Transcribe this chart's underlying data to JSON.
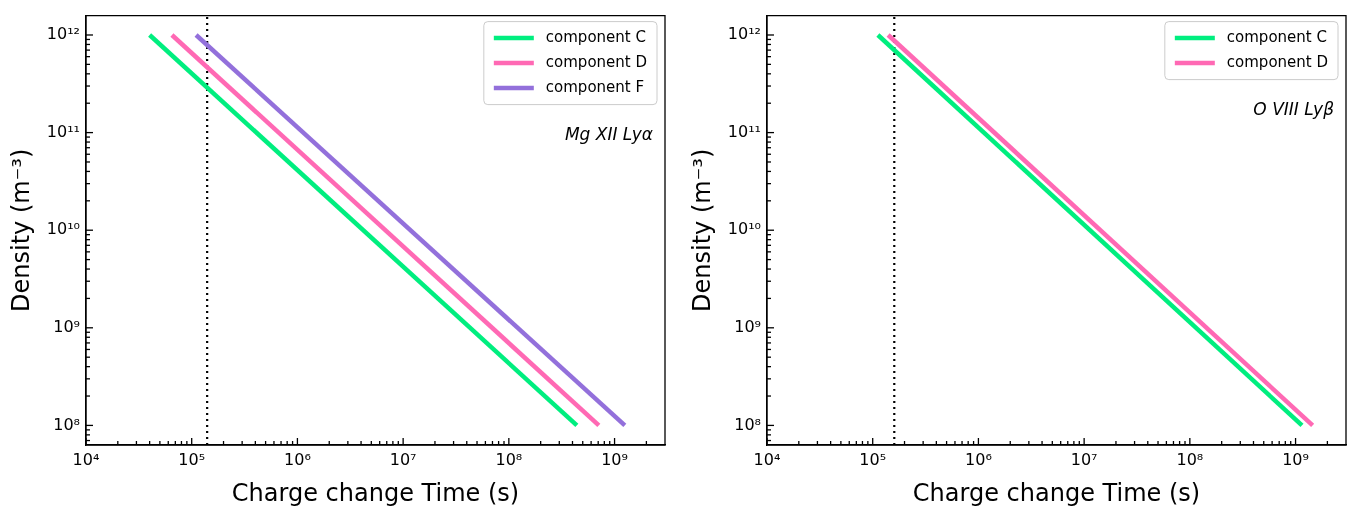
{
  "chart_data": [
    {
      "type": "line",
      "log": "xy",
      "xlabel": "Charge change Time (s)",
      "ylabel": "Density (m⁻³)",
      "legend": "top right",
      "marker": "none",
      "line_style": "solid",
      "grid": false,
      "annotations": [
        "Mg XII Lyα"
      ],
      "xlim": [
        10000,
        3000000000
      ],
      "ylim": [
        63000000,
        1580000000000
      ],
      "xticks": [
        {
          "value": 10000,
          "label": "10⁴"
        },
        {
          "value": 20000,
          "label": null
        },
        {
          "value": 30000,
          "label": null
        },
        {
          "value": 40000,
          "label": null
        },
        {
          "value": 50000,
          "label": null
        },
        {
          "value": 60000,
          "label": null
        },
        {
          "value": 70000,
          "label": null
        },
        {
          "value": 80000,
          "label": null
        },
        {
          "value": 90000,
          "label": null
        },
        {
          "value": 100000,
          "label": "10⁵"
        },
        {
          "value": 200000,
          "label": null
        },
        {
          "value": 300000,
          "label": null
        },
        {
          "value": 400000,
          "label": null
        },
        {
          "value": 500000,
          "label": null
        },
        {
          "value": 600000,
          "label": null
        },
        {
          "value": 700000,
          "label": null
        },
        {
          "value": 800000,
          "label": null
        },
        {
          "value": 900000,
          "label": null
        },
        {
          "value": 1000000,
          "label": "10⁶"
        },
        {
          "value": 2000000,
          "label": null
        },
        {
          "value": 3000000,
          "label": null
        },
        {
          "value": 4000000,
          "label": null
        },
        {
          "value": 5000000,
          "label": null
        },
        {
          "value": 6000000,
          "label": null
        },
        {
          "value": 7000000,
          "label": null
        },
        {
          "value": 8000000,
          "label": null
        },
        {
          "value": 9000000,
          "label": null
        },
        {
          "value": 10000000,
          "label": "10⁷"
        },
        {
          "value": 20000000,
          "label": null
        },
        {
          "value": 30000000,
          "label": null
        },
        {
          "value": 40000000,
          "label": null
        },
        {
          "value": 50000000,
          "label": null
        },
        {
          "value": 60000000,
          "label": null
        },
        {
          "value": 70000000,
          "label": null
        },
        {
          "value": 80000000,
          "label": null
        },
        {
          "value": 90000000,
          "label": null
        },
        {
          "value": 100000000,
          "label": "10⁸"
        },
        {
          "value": 200000000,
          "label": null
        },
        {
          "value": 300000000,
          "label": null
        },
        {
          "value": 400000000,
          "label": null
        },
        {
          "value": 500000000,
          "label": null
        },
        {
          "value": 600000000,
          "label": null
        },
        {
          "value": 700000000,
          "label": null
        },
        {
          "value": 800000000,
          "label": null
        },
        {
          "value": 900000000,
          "label": null
        },
        {
          "value": 1000000000,
          "label": "10⁹"
        },
        {
          "value": 2000000000,
          "label": null
        }
      ],
      "yticks": [
        {
          "value": 70000000,
          "label": null
        },
        {
          "value": 80000000,
          "label": null
        },
        {
          "value": 90000000,
          "label": null
        },
        {
          "value": 100000000,
          "label": "10⁸"
        },
        {
          "value": 200000000,
          "label": null
        },
        {
          "value": 300000000,
          "label": null
        },
        {
          "value": 400000000,
          "label": null
        },
        {
          "value": 500000000,
          "label": null
        },
        {
          "value": 600000000,
          "label": null
        },
        {
          "value": 700000000,
          "label": null
        },
        {
          "value": 800000000,
          "label": null
        },
        {
          "value": 900000000,
          "label": null
        },
        {
          "value": 1000000000,
          "label": "10⁹"
        },
        {
          "value": 2000000000,
          "label": null
        },
        {
          "value": 3000000000,
          "label": null
        },
        {
          "value": 4000000000,
          "label": null
        },
        {
          "value": 5000000000,
          "label": null
        },
        {
          "value": 6000000000,
          "label": null
        },
        {
          "value": 7000000000,
          "label": null
        },
        {
          "value": 8000000000,
          "label": null
        },
        {
          "value": 9000000000,
          "label": null
        },
        {
          "value": 10000000000,
          "label": "10¹⁰"
        },
        {
          "value": 20000000000,
          "label": null
        },
        {
          "value": 30000000000,
          "label": null
        },
        {
          "value": 40000000000,
          "label": null
        },
        {
          "value": 50000000000,
          "label": null
        },
        {
          "value": 60000000000,
          "label": null
        },
        {
          "value": 70000000000,
          "label": null
        },
        {
          "value": 80000000000,
          "label": null
        },
        {
          "value": 90000000000,
          "label": null
        },
        {
          "value": 100000000000,
          "label": "10¹¹"
        },
        {
          "value": 200000000000,
          "label": null
        },
        {
          "value": 300000000000,
          "label": null
        },
        {
          "value": 400000000000,
          "label": null
        },
        {
          "value": 500000000000,
          "label": null
        },
        {
          "value": 600000000000,
          "label": null
        },
        {
          "value": 700000000000,
          "label": null
        },
        {
          "value": 800000000000,
          "label": null
        },
        {
          "value": 900000000000,
          "label": null
        },
        {
          "value": 1000000000000,
          "label": "10¹²"
        }
      ],
      "ref_lines": [
        {
          "axis": "x",
          "value": 140000,
          "label": null,
          "color": "#000000",
          "line_style": "dotted"
        }
      ],
      "series": [
        {
          "name": "component C",
          "color": "#00ee7f",
          "x": [
            40000,
            440000000
          ],
          "values": [
            1000000000000,
            100000000
          ]
        },
        {
          "name": "component D",
          "color": "#ff69b4",
          "x": [
            65000,
            710000000
          ],
          "values": [
            1000000000000,
            100000000
          ]
        },
        {
          "name": "component F",
          "color": "#9370db",
          "x": [
            110000,
            1250000000
          ],
          "values": [
            1000000000000,
            100000000
          ]
        }
      ]
    },
    {
      "type": "line",
      "log": "xy",
      "xlabel": "Charge change Time (s)",
      "ylabel": "Density (m⁻³)",
      "legend": "top right",
      "marker": "none",
      "line_style": "solid",
      "grid": false,
      "annotations": [
        "O VIII Lyβ"
      ],
      "xlim": [
        10000,
        3000000000
      ],
      "ylim": [
        63000000,
        1580000000000
      ],
      "xticks": [
        {
          "value": 10000,
          "label": "10⁴"
        },
        {
          "value": 20000,
          "label": null
        },
        {
          "value": 30000,
          "label": null
        },
        {
          "value": 40000,
          "label": null
        },
        {
          "value": 50000,
          "label": null
        },
        {
          "value": 60000,
          "label": null
        },
        {
          "value": 70000,
          "label": null
        },
        {
          "value": 80000,
          "label": null
        },
        {
          "value": 90000,
          "label": null
        },
        {
          "value": 100000,
          "label": "10⁵"
        },
        {
          "value": 200000,
          "label": null
        },
        {
          "value": 300000,
          "label": null
        },
        {
          "value": 400000,
          "label": null
        },
        {
          "value": 500000,
          "label": null
        },
        {
          "value": 600000,
          "label": null
        },
        {
          "value": 700000,
          "label": null
        },
        {
          "value": 800000,
          "label": null
        },
        {
          "value": 900000,
          "label": null
        },
        {
          "value": 1000000,
          "label": "10⁶"
        },
        {
          "value": 2000000,
          "label": null
        },
        {
          "value": 3000000,
          "label": null
        },
        {
          "value": 4000000,
          "label": null
        },
        {
          "value": 5000000,
          "label": null
        },
        {
          "value": 6000000,
          "label": null
        },
        {
          "value": 7000000,
          "label": null
        },
        {
          "value": 8000000,
          "label": null
        },
        {
          "value": 9000000,
          "label": null
        },
        {
          "value": 10000000,
          "label": "10⁷"
        },
        {
          "value": 20000000,
          "label": null
        },
        {
          "value": 30000000,
          "label": null
        },
        {
          "value": 40000000,
          "label": null
        },
        {
          "value": 50000000,
          "label": null
        },
        {
          "value": 60000000,
          "label": null
        },
        {
          "value": 70000000,
          "label": null
        },
        {
          "value": 80000000,
          "label": null
        },
        {
          "value": 90000000,
          "label": null
        },
        {
          "value": 100000000,
          "label": "10⁸"
        },
        {
          "value": 200000000,
          "label": null
        },
        {
          "value": 300000000,
          "label": null
        },
        {
          "value": 400000000,
          "label": null
        },
        {
          "value": 500000000,
          "label": null
        },
        {
          "value": 600000000,
          "label": null
        },
        {
          "value": 700000000,
          "label": null
        },
        {
          "value": 800000000,
          "label": null
        },
        {
          "value": 900000000,
          "label": null
        },
        {
          "value": 1000000000,
          "label": "10⁹"
        },
        {
          "value": 2000000000,
          "label": null
        }
      ],
      "yticks": [
        {
          "value": 70000000,
          "label": null
        },
        {
          "value": 80000000,
          "label": null
        },
        {
          "value": 90000000,
          "label": null
        },
        {
          "value": 100000000,
          "label": "10⁸"
        },
        {
          "value": 200000000,
          "label": null
        },
        {
          "value": 300000000,
          "label": null
        },
        {
          "value": 400000000,
          "label": null
        },
        {
          "value": 500000000,
          "label": null
        },
        {
          "value": 600000000,
          "label": null
        },
        {
          "value": 700000000,
          "label": null
        },
        {
          "value": 800000000,
          "label": null
        },
        {
          "value": 900000000,
          "label": null
        },
        {
          "value": 1000000000,
          "label": "10⁹"
        },
        {
          "value": 2000000000,
          "label": null
        },
        {
          "value": 3000000000,
          "label": null
        },
        {
          "value": 4000000000,
          "label": null
        },
        {
          "value": 5000000000,
          "label": null
        },
        {
          "value": 6000000000,
          "label": null
        },
        {
          "value": 7000000000,
          "label": null
        },
        {
          "value": 8000000000,
          "label": null
        },
        {
          "value": 9000000000,
          "label": null
        },
        {
          "value": 10000000000,
          "label": "10¹⁰"
        },
        {
          "value": 20000000000,
          "label": null
        },
        {
          "value": 30000000000,
          "label": null
        },
        {
          "value": 40000000000,
          "label": null
        },
        {
          "value": 50000000000,
          "label": null
        },
        {
          "value": 60000000000,
          "label": null
        },
        {
          "value": 70000000000,
          "label": null
        },
        {
          "value": 80000000000,
          "label": null
        },
        {
          "value": 90000000000,
          "label": null
        },
        {
          "value": 100000000000,
          "label": "10¹¹"
        },
        {
          "value": 200000000000,
          "label": null
        },
        {
          "value": 300000000000,
          "label": null
        },
        {
          "value": 400000000000,
          "label": null
        },
        {
          "value": 500000000000,
          "label": null
        },
        {
          "value": 600000000000,
          "label": null
        },
        {
          "value": 700000000000,
          "label": null
        },
        {
          "value": 800000000000,
          "label": null
        },
        {
          "value": 900000000000,
          "label": null
        },
        {
          "value": 1000000000000,
          "label": "10¹²"
        }
      ],
      "ref_lines": [
        {
          "axis": "x",
          "value": 160000,
          "label": null,
          "color": "#000000",
          "line_style": "dotted"
        }
      ],
      "series": [
        {
          "name": "component C",
          "color": "#00ee7f",
          "x": [
            112000,
            1150000000
          ],
          "values": [
            1000000000000,
            100000000
          ]
        },
        {
          "name": "component D",
          "color": "#ff69b4",
          "x": [
            140000,
            1450000000
          ],
          "values": [
            1000000000000,
            100000000
          ]
        }
      ]
    }
  ]
}
